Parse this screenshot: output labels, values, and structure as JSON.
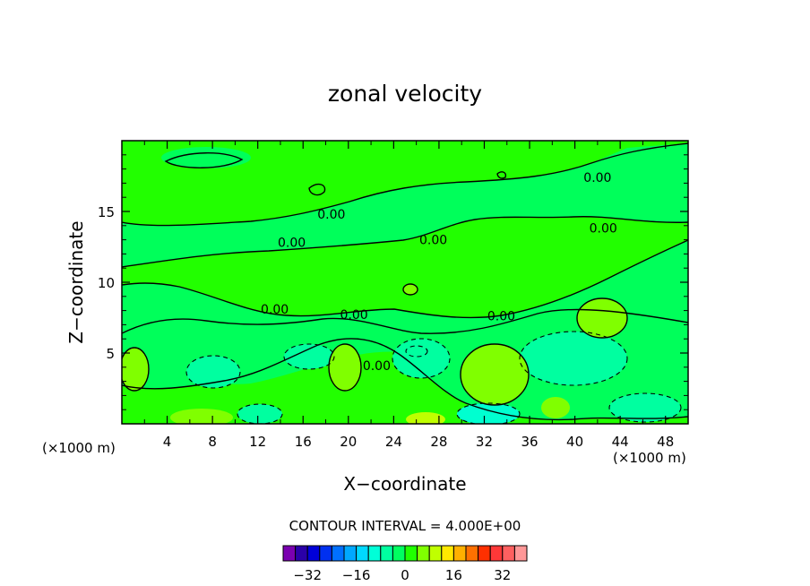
{
  "chart_data": {
    "type": "contour",
    "title": "zonal velocity",
    "xlabel": "X−coordinate",
    "ylabel": "Z−coordinate",
    "x_unit_left": "(×1000 m)",
    "x_unit_right": "(×1000 m)",
    "xlim": [
      0,
      50
    ],
    "ylim": [
      0,
      20
    ],
    "x_ticks": [
      {
        "value": 4,
        "label": "4"
      },
      {
        "value": 8,
        "label": "8"
      },
      {
        "value": 12,
        "label": "12"
      },
      {
        "value": 16,
        "label": "16"
      },
      {
        "value": 20,
        "label": "20"
      },
      {
        "value": 24,
        "label": "24"
      },
      {
        "value": 28,
        "label": "28"
      },
      {
        "value": 32,
        "label": "32"
      },
      {
        "value": 36,
        "label": "36"
      },
      {
        "value": 40,
        "label": "40"
      },
      {
        "value": 44,
        "label": "44"
      },
      {
        "value": 48,
        "label": "48"
      }
    ],
    "y_ticks": [
      {
        "value": 5,
        "label": "5"
      },
      {
        "value": 10,
        "label": "10"
      },
      {
        "value": 15,
        "label": "15"
      }
    ],
    "contour_interval_text": "CONTOUR INTERVAL =  4.000E+00",
    "contour_labels": [
      {
        "text": "0.00",
        "x": 18.5,
        "y": 14.5
      },
      {
        "text": "0.00",
        "x": 15.0,
        "y": 12.5
      },
      {
        "text": "0.00",
        "x": 27.5,
        "y": 12.7
      },
      {
        "text": "0.00",
        "x": 42.5,
        "y": 13.5
      },
      {
        "text": "0.00",
        "x": 42.0,
        "y": 17.1
      },
      {
        "text": "0.00",
        "x": 13.5,
        "y": 7.8
      },
      {
        "text": "0.00",
        "x": 20.5,
        "y": 7.4
      },
      {
        "text": "0.00",
        "x": 33.5,
        "y": 7.3
      },
      {
        "text": "0.00",
        "x": 22.5,
        "y": 3.8
      }
    ],
    "colorbar": {
      "colors": [
        "#7a00b0",
        "#2a00a8",
        "#0000d8",
        "#0030f0",
        "#0070ff",
        "#00a8ff",
        "#00d8ff",
        "#00ffd8",
        "#00ffa0",
        "#00ff60",
        "#20ff00",
        "#80ff00",
        "#c0ff00",
        "#ffe800",
        "#ffb000",
        "#ff7000",
        "#ff3000",
        "#ff3838",
        "#ff6060",
        "#ff9898"
      ],
      "tick_labels": [
        {
          "value": -32,
          "label": "−32"
        },
        {
          "value": -16,
          "label": "−16"
        },
        {
          "value": 0,
          "label": "0"
        },
        {
          "value": 16,
          "label": "16"
        },
        {
          "value": 32,
          "label": "32"
        }
      ]
    }
  }
}
